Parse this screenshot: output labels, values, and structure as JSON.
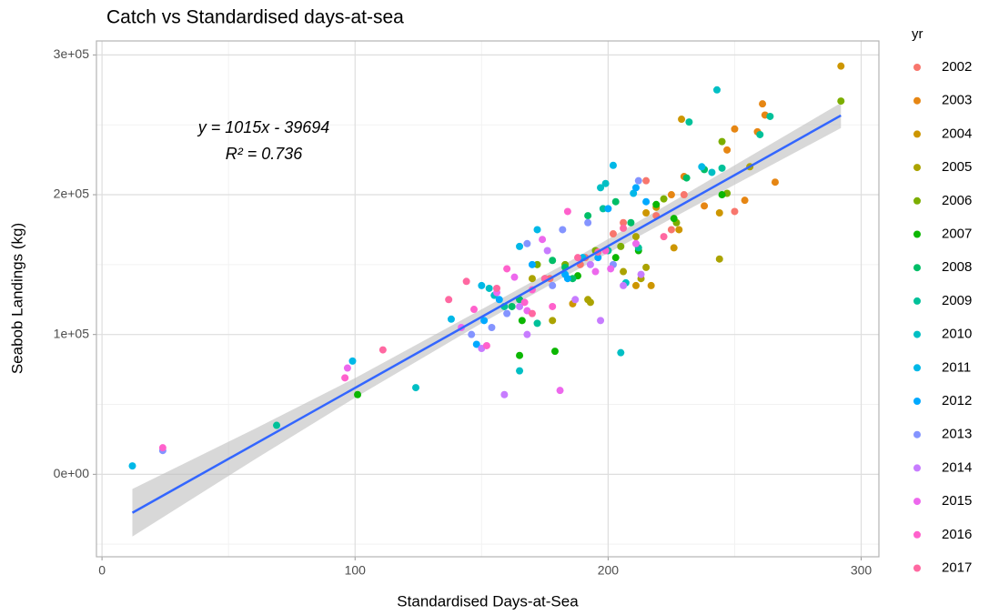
{
  "chart_data": {
    "type": "scatter",
    "title": "Catch vs Standardised days-at-sea",
    "x_label": "Standardised Days-at-Sea",
    "y_label": "Seabob Landings (kg)",
    "legend_title": "yr",
    "legend_position": "right",
    "grid": true,
    "xlim": [
      -2.2,
      307
    ],
    "ylim": [
      -59000,
      310000
    ],
    "xticks": [
      0,
      100,
      200,
      300
    ],
    "xminorticks": [
      50,
      150,
      250
    ],
    "yticks": [
      {
        "value": 0,
        "label": "0e+00"
      },
      {
        "value": 100000,
        "label": "1e+05"
      },
      {
        "value": 200000,
        "label": "2e+05"
      },
      {
        "value": 300000,
        "label": "3e+05"
      }
    ],
    "yminorticks": [
      -50000,
      50000,
      150000,
      250000
    ],
    "annotations": [
      "y = 1015x - 39694",
      "R² = 0.736"
    ],
    "fit": {
      "slope": 1015,
      "intercept": -39694,
      "xrange": [
        12,
        292
      ],
      "color": "#3366ff"
    },
    "ci": {
      "x": [
        12,
        60,
        100,
        150,
        185,
        230,
        292
      ],
      "lower": [
        -44514,
        10206,
        54806,
        108056,
        143581,
        187756,
        247686
      ],
      "upper": [
        -10514,
        32206,
        68806,
        118056,
        152581,
        199756,
        265686
      ],
      "color": "#bebebe"
    },
    "series": [
      {
        "name": "2002",
        "color": "#F8766D",
        "x": [
          189,
          206,
          215,
          219,
          225,
          250,
          191,
          202,
          177,
          230
        ],
        "y": [
          150000,
          180000,
          210000,
          185000,
          175000,
          188000,
          155000,
          172000,
          140000,
          200000
        ]
      },
      {
        "name": "2003",
        "color": "#E68613",
        "x": [
          259,
          262,
          266,
          250,
          254,
          238,
          230,
          247,
          261,
          225
        ],
        "y": [
          245000,
          257000,
          209000,
          247000,
          196000,
          192000,
          213000,
          232000,
          265000,
          200000
        ]
      },
      {
        "name": "2004",
        "color": "#CD9600",
        "x": [
          292,
          229,
          228,
          226,
          244,
          217,
          215,
          219,
          211,
          186
        ],
        "y": [
          292000,
          254000,
          175000,
          162000,
          187000,
          135000,
          187000,
          191000,
          135000,
          122000
        ]
      },
      {
        "name": "2005",
        "color": "#ABA300",
        "x": [
          256,
          244,
          213,
          215,
          211,
          192,
          178,
          193,
          170,
          206
        ],
        "y": [
          220000,
          154000,
          140000,
          148000,
          170000,
          125000,
          110000,
          123000,
          140000,
          145000
        ]
      },
      {
        "name": "2006",
        "color": "#7CAE00",
        "x": [
          292,
          245,
          247,
          227,
          222,
          205,
          195,
          183,
          175,
          172
        ],
        "y": [
          267000,
          238000,
          201000,
          180000,
          197000,
          163000,
          160000,
          150000,
          140000,
          150000
        ]
      },
      {
        "name": "2007",
        "color": "#0CB702",
        "x": [
          245,
          226,
          219,
          212,
          179,
          165,
          166,
          203,
          188,
          101
        ],
        "y": [
          200000,
          183000,
          193000,
          160000,
          88000,
          85000,
          110000,
          155000,
          142000,
          57000
        ]
      },
      {
        "name": "2008",
        "color": "#00BE67",
        "x": [
          231,
          238,
          203,
          192,
          186,
          183,
          162,
          165,
          178,
          209
        ],
        "y": [
          212000,
          218000,
          195000,
          185000,
          140000,
          148000,
          120000,
          125000,
          153000,
          180000
        ]
      },
      {
        "name": "2009",
        "color": "#00C19A",
        "x": [
          264,
          260,
          232,
          245,
          212,
          172,
          159,
          69,
          200,
          198
        ],
        "y": [
          256000,
          243000,
          252000,
          219000,
          162000,
          108000,
          120000,
          35000,
          160000,
          190000
        ]
      },
      {
        "name": "2010",
        "color": "#00BFC4",
        "x": [
          243,
          241,
          199,
          197,
          205,
          165,
          153,
          155,
          124,
          207
        ],
        "y": [
          275000,
          216000,
          208000,
          205000,
          87000,
          74000,
          133000,
          128000,
          62000,
          137000
        ]
      },
      {
        "name": "2011",
        "color": "#00B8E7",
        "x": [
          12,
          99,
          138,
          172,
          165,
          202,
          237,
          210,
          150,
          190
        ],
        "y": [
          6000,
          81000,
          111000,
          175000,
          163000,
          221000,
          220000,
          201000,
          135000,
          155000
        ]
      },
      {
        "name": "2012",
        "color": "#00A9FF",
        "x": [
          148,
          157,
          184,
          196,
          211,
          215,
          170,
          151,
          183,
          200
        ],
        "y": [
          93000,
          125000,
          140000,
          155000,
          205000,
          195000,
          150000,
          110000,
          143000,
          190000
        ]
      },
      {
        "name": "2013",
        "color": "#8494FF",
        "x": [
          24,
          146,
          160,
          178,
          182,
          192,
          202,
          212,
          154,
          168
        ],
        "y": [
          17000,
          100000,
          115000,
          135000,
          175000,
          180000,
          150000,
          210000,
          105000,
          165000
        ]
      },
      {
        "name": "2014",
        "color": "#C77CFF",
        "x": [
          159,
          150,
          168,
          187,
          197,
          213,
          193,
          176,
          165,
          206
        ],
        "y": [
          57000,
          90000,
          100000,
          125000,
          110000,
          143000,
          150000,
          160000,
          120000,
          135000
        ]
      },
      {
        "name": "2015",
        "color": "#ED68ED",
        "x": [
          97,
          142,
          168,
          181,
          195,
          211,
          156,
          174,
          163,
          201
        ],
        "y": [
          76000,
          105000,
          117000,
          60000,
          145000,
          165000,
          130000,
          168000,
          141000,
          147000
        ]
      },
      {
        "name": "2016",
        "color": "#FF61CC",
        "x": [
          24,
          96,
          147,
          160,
          178,
          199,
          170,
          152,
          167,
          184
        ],
        "y": [
          19000,
          69000,
          118000,
          147000,
          120000,
          160000,
          132000,
          92000,
          123000,
          188000
        ]
      },
      {
        "name": "2017",
        "color": "#FF68A1",
        "x": [
          111,
          144,
          137,
          156,
          175,
          196,
          206,
          170,
          188,
          222
        ],
        "y": [
          89000,
          138000,
          125000,
          133000,
          140000,
          159000,
          176000,
          115000,
          155000,
          170000
        ]
      }
    ]
  }
}
